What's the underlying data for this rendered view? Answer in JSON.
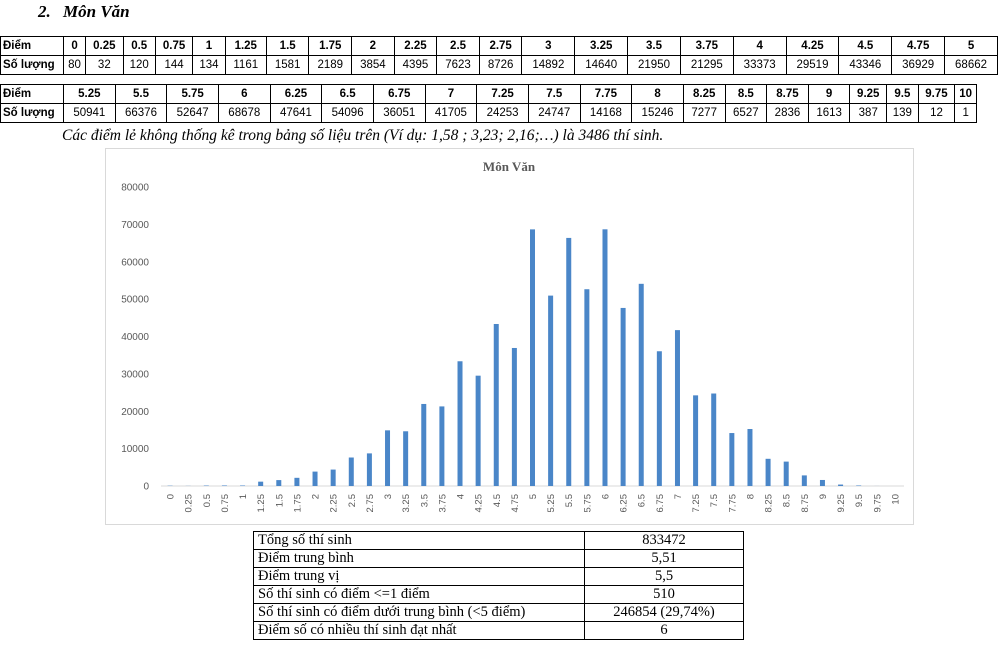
{
  "section": {
    "number": "2.",
    "title": "Môn Văn"
  },
  "table1": {
    "label_score": "Điểm",
    "label_count": "Số lượng",
    "scores": [
      "0",
      "0.25",
      "0.5",
      "0.75",
      "1",
      "1.25",
      "1.5",
      "1.75",
      "2",
      "2.25",
      "2.5",
      "2.75",
      "3",
      "3.25",
      "3.5",
      "3.75",
      "4",
      "4.25",
      "4.5",
      "4.75",
      "5"
    ],
    "counts": [
      "80",
      "32",
      "120",
      "144",
      "134",
      "1161",
      "1581",
      "2189",
      "3854",
      "4395",
      "7623",
      "8726",
      "14892",
      "14640",
      "21950",
      "21295",
      "33373",
      "29519",
      "43346",
      "36929",
      "68662"
    ]
  },
  "table2": {
    "label_score": "Điểm",
    "label_count": "Số lượng",
    "scores": [
      "5.25",
      "5.5",
      "5.75",
      "6",
      "6.25",
      "6.5",
      "6.75",
      "7",
      "7.25",
      "7.5",
      "7.75",
      "8",
      "8.25",
      "8.5",
      "8.75",
      "9",
      "9.25",
      "9.5",
      "9.75",
      "10"
    ],
    "counts": [
      "50941",
      "66376",
      "52647",
      "68678",
      "47641",
      "54096",
      "36051",
      "41705",
      "24253",
      "24747",
      "14168",
      "15246",
      "7277",
      "6527",
      "2836",
      "1613",
      "387",
      "139",
      "12",
      "1"
    ]
  },
  "note": "Các điểm lẻ không thống kê trong bảng số liệu trên (Ví dụ: 1,58 ; 3,23; 2,16;…) là 3486 thí sinh.",
  "chart_data": {
    "type": "bar",
    "title": "Môn Văn",
    "xlabel": "",
    "ylabel": "",
    "categories": [
      "0",
      "0.25",
      "0.5",
      "0.75",
      "1",
      "1.25",
      "1.5",
      "1.75",
      "2",
      "2.25",
      "2.5",
      "2.75",
      "3",
      "3.25",
      "3.5",
      "3.75",
      "4",
      "4.25",
      "4.5",
      "4.75",
      "5",
      "5.25",
      "5.5",
      "5.75",
      "6",
      "6.25",
      "6.5",
      "6.75",
      "7",
      "7.25",
      "7.5",
      "7.75",
      "8",
      "8.25",
      "8.5",
      "8.75",
      "9",
      "9.25",
      "9.5",
      "9.75",
      "10"
    ],
    "values": [
      80,
      32,
      120,
      144,
      134,
      1161,
      1581,
      2189,
      3854,
      4395,
      7623,
      8726,
      14892,
      14640,
      21950,
      21295,
      33373,
      29519,
      43346,
      36929,
      68662,
      50941,
      66376,
      52647,
      68678,
      47641,
      54096,
      36051,
      41705,
      24253,
      24747,
      14168,
      15246,
      7277,
      6527,
      2836,
      1613,
      387,
      139,
      12,
      1
    ],
    "yticks": [
      "0",
      "10000",
      "20000",
      "30000",
      "40000",
      "50000",
      "60000",
      "70000",
      "80000"
    ],
    "ylim": [
      0,
      80000
    ],
    "grid": false,
    "legend": "none",
    "bar_color": "#4a86c8"
  },
  "summary": [
    {
      "label": "Tổng số thí sinh",
      "value": "833472"
    },
    {
      "label": "Điểm trung bình",
      "value": "5,51"
    },
    {
      "label": "Điểm trung vị",
      "value": "5,5"
    },
    {
      "label": "Số thí sinh có điểm <=1 điểm",
      "value": "510"
    },
    {
      "label": "Số thí sinh có điểm dưới trung bình (<5 điểm)",
      "value": "246854 (29,74%)"
    },
    {
      "label": "Điểm số có nhiều thí sinh đạt nhất",
      "value": "6"
    }
  ]
}
